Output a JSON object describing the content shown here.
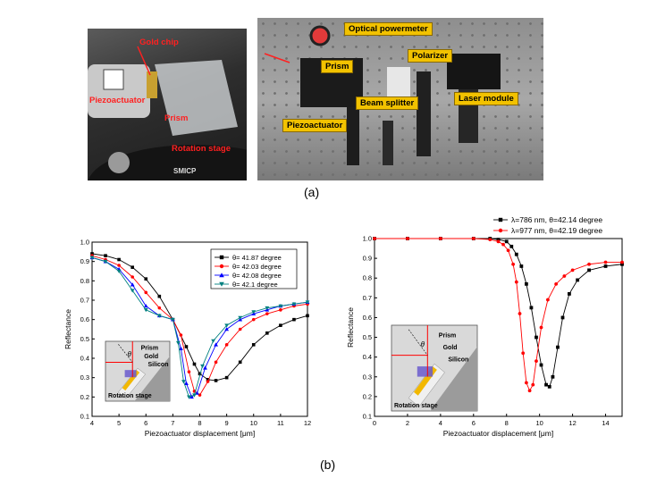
{
  "photos": {
    "left_labels": {
      "gold_chip": "Gold chip",
      "piezoactuator": "Piezoactuator",
      "prism": "Prism",
      "rotation_stage": "Rotation stage",
      "stage_text": "SMICP"
    },
    "right_labels": {
      "powermeter": "Optical powermeter",
      "prism": "Prism",
      "polarizer": "Polarizer",
      "beam_splitter": "Beam splitter",
      "laser_module": "Laser module",
      "piezoactuator": "Piezoactuator"
    }
  },
  "captions": {
    "a": "(a)",
    "b": "(b)"
  },
  "inset": {
    "prism": "Prism",
    "gold": "Gold",
    "silicon": "Silicon",
    "rotation_stage": "Rotation stage",
    "theta": "θ"
  },
  "colors": {
    "black": "#000000",
    "red": "#ff0000",
    "blue": "#0000ff",
    "teal": "#008080"
  },
  "chart_data": [
    {
      "type": "line",
      "xlabel": "Piezoactuator displacement [μm]",
      "ylabel": "Reflectance",
      "xlim": [
        4,
        12
      ],
      "ylim": [
        0.1,
        1.0
      ],
      "xticks": [
        4,
        5,
        6,
        7,
        8,
        9,
        10,
        11,
        12
      ],
      "yticks": [
        0.1,
        0.2,
        0.3,
        0.4,
        0.5,
        0.6,
        0.7,
        0.8,
        0.9,
        1.0
      ],
      "legend_position": "top-right",
      "series": [
        {
          "name": "θ= 41.87 degree",
          "color": "#000000",
          "marker": "square",
          "x": [
            4.0,
            4.5,
            5.0,
            5.5,
            6.0,
            6.5,
            7.0,
            7.5,
            7.8,
            8.0,
            8.3,
            8.6,
            9.0,
            9.5,
            10.0,
            10.5,
            11.0,
            11.5,
            12.0
          ],
          "y": [
            0.94,
            0.93,
            0.91,
            0.87,
            0.81,
            0.72,
            0.6,
            0.46,
            0.37,
            0.32,
            0.29,
            0.285,
            0.3,
            0.38,
            0.47,
            0.53,
            0.57,
            0.6,
            0.62
          ]
        },
        {
          "name": "θ= 42.03 degree",
          "color": "#ff0000",
          "marker": "circle",
          "x": [
            4.0,
            4.5,
            5.0,
            5.5,
            6.0,
            6.5,
            7.0,
            7.3,
            7.6,
            7.8,
            8.0,
            8.3,
            8.6,
            9.0,
            9.5,
            10.0,
            10.5,
            11.0,
            11.5,
            12.0
          ],
          "y": [
            0.93,
            0.91,
            0.88,
            0.82,
            0.74,
            0.66,
            0.6,
            0.52,
            0.33,
            0.23,
            0.21,
            0.28,
            0.38,
            0.47,
            0.55,
            0.6,
            0.63,
            0.65,
            0.67,
            0.68
          ]
        },
        {
          "name": "θ= 42.08 degree",
          "color": "#0000ff",
          "marker": "triangle",
          "x": [
            4.0,
            4.5,
            5.0,
            5.5,
            6.0,
            6.5,
            7.0,
            7.3,
            7.5,
            7.7,
            7.9,
            8.2,
            8.6,
            9.0,
            9.5,
            10.0,
            10.5,
            11.0,
            11.5,
            12.0
          ],
          "y": [
            0.92,
            0.9,
            0.86,
            0.78,
            0.67,
            0.62,
            0.6,
            0.45,
            0.27,
            0.2,
            0.22,
            0.35,
            0.47,
            0.55,
            0.6,
            0.63,
            0.65,
            0.67,
            0.68,
            0.69
          ]
        },
        {
          "name": "θ= 42.1 degree",
          "color": "#008080",
          "marker": "triangle-down",
          "x": [
            4.0,
            4.5,
            5.0,
            5.5,
            6.0,
            6.5,
            7.0,
            7.2,
            7.4,
            7.6,
            7.8,
            8.1,
            8.5,
            9.0,
            9.5,
            10.0,
            10.5,
            11.0,
            11.5,
            12.0
          ],
          "y": [
            0.92,
            0.9,
            0.85,
            0.75,
            0.65,
            0.62,
            0.6,
            0.48,
            0.28,
            0.2,
            0.21,
            0.36,
            0.49,
            0.57,
            0.61,
            0.64,
            0.66,
            0.67,
            0.68,
            0.69
          ]
        }
      ]
    },
    {
      "type": "line",
      "xlabel": "Piezoactuator displacement [μm]",
      "ylabel": "Reflectance",
      "xlim": [
        0,
        15
      ],
      "ylim": [
        0.1,
        1.0
      ],
      "xticks": [
        0,
        2,
        4,
        6,
        8,
        10,
        12,
        14
      ],
      "yticks": [
        0.1,
        0.2,
        0.3,
        0.4,
        0.5,
        0.6,
        0.7,
        0.8,
        0.9,
        1.0
      ],
      "legend_position": "top-right",
      "series": [
        {
          "name": "λ=786 nm, θ=42.14 degree",
          "color": "#000000",
          "marker": "square",
          "x": [
            0,
            2,
            4,
            6,
            7,
            7.5,
            8.0,
            8.3,
            8.6,
            8.9,
            9.2,
            9.5,
            9.8,
            10.1,
            10.4,
            10.6,
            10.8,
            11.1,
            11.4,
            11.8,
            12.3,
            13.0,
            14.0,
            15.0
          ],
          "y": [
            1.0,
            1.0,
            1.0,
            1.0,
            1.0,
            0.995,
            0.985,
            0.96,
            0.92,
            0.86,
            0.77,
            0.65,
            0.5,
            0.36,
            0.26,
            0.25,
            0.3,
            0.45,
            0.6,
            0.72,
            0.79,
            0.84,
            0.86,
            0.87
          ]
        },
        {
          "name": "λ=977 nm, θ=42.19 degree",
          "color": "#ff0000",
          "marker": "circle",
          "x": [
            0,
            2,
            4,
            6,
            7,
            7.5,
            7.8,
            8.1,
            8.4,
            8.6,
            8.8,
            9.0,
            9.2,
            9.4,
            9.6,
            9.8,
            10.1,
            10.5,
            11.0,
            11.5,
            12.0,
            13.0,
            14.0,
            15.0
          ],
          "y": [
            1.0,
            1.0,
            1.0,
            1.0,
            0.995,
            0.985,
            0.97,
            0.94,
            0.87,
            0.78,
            0.62,
            0.42,
            0.27,
            0.23,
            0.26,
            0.38,
            0.55,
            0.69,
            0.77,
            0.81,
            0.84,
            0.87,
            0.88,
            0.88
          ]
        }
      ]
    }
  ]
}
